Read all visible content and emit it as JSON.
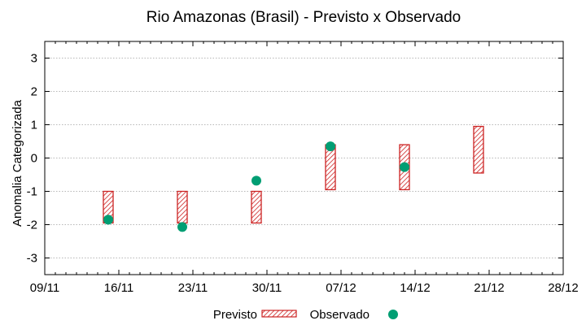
{
  "chart_data": {
    "type": "range-bar+scatter",
    "title": "Rio Amazonas (Brasil) - Previsto x Observado",
    "xlabel": "",
    "ylabel": "Anomalia Categorizada",
    "x_tick_labels": [
      "09/11",
      "16/11",
      "23/11",
      "30/11",
      "07/12",
      "14/12",
      "21/12",
      "28/12"
    ],
    "xlim_days": [
      0,
      49
    ],
    "ylim": [
      -3.5,
      3.5
    ],
    "y_ticks": [
      -3,
      -2,
      -1,
      0,
      1,
      2,
      3
    ],
    "grid": true,
    "legend": {
      "position": "bottom",
      "entries": [
        "Previsto",
        "Observado"
      ]
    },
    "colors": {
      "previsto": "#cc2222",
      "observado": "#009e73",
      "grid": "#a0a0a0"
    },
    "previsto": [
      {
        "day": 6,
        "low": -1.95,
        "high": -1.0
      },
      {
        "day": 13,
        "low": -1.95,
        "high": -1.0
      },
      {
        "day": 20,
        "low": -1.95,
        "high": -1.0
      },
      {
        "day": 27,
        "low": -0.95,
        "high": 0.4
      },
      {
        "day": 34,
        "low": -0.95,
        "high": 0.4
      },
      {
        "day": 41,
        "low": -0.45,
        "high": 0.95
      }
    ],
    "observado": [
      {
        "day": 6,
        "value": -1.85
      },
      {
        "day": 13,
        "value": -2.07
      },
      {
        "day": 20,
        "value": -0.68
      },
      {
        "day": 27,
        "value": 0.35
      },
      {
        "day": 34,
        "value": -0.27
      }
    ]
  }
}
